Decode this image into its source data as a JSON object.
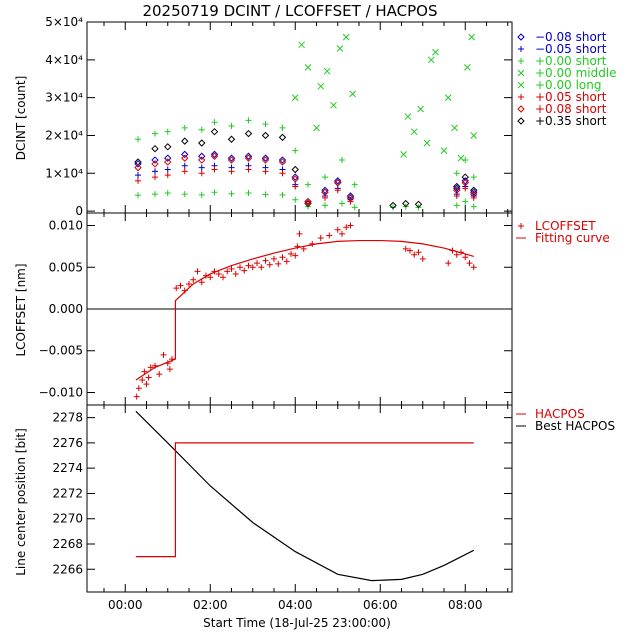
{
  "chart_data": {
    "title": "20250719 DCINT / LCOFFSET / HACPOS",
    "xlabel": "Start Time (18-Jul-25 23:00:00)",
    "xlim": [
      -0.9,
      9.1
    ],
    "xticks": [
      0,
      2,
      4,
      6,
      8
    ],
    "xtick_labels": [
      "00:00",
      "02:00",
      "04:00",
      "06:00",
      "08:00"
    ],
    "panels": [
      {
        "id": "dcint",
        "type": "scatter",
        "ylabel": "DCINT [count]",
        "ylim": [
          -500,
          50000
        ],
        "yticks": [
          0,
          10000,
          20000,
          30000,
          40000,
          50000
        ],
        "ytick_labels": [
          "0",
          "1×10⁴",
          "2×10⁴",
          "3×10⁴",
          "4×10⁴",
          "5×10⁴"
        ],
        "legend": [
          {
            "label": "−0.08 short",
            "marker": "diamond",
            "color": "#0000cc"
          },
          {
            "label": "−0.05 short",
            "marker": "plus",
            "color": "#0000cc"
          },
          {
            "label": "+0.00 short",
            "marker": "plus",
            "color": "#22cc22"
          },
          {
            "label": "+0.00 middle",
            "marker": "cross",
            "color": "#22cc22"
          },
          {
            "label": "+0.00 long",
            "marker": "cross",
            "color": "#22cc22"
          },
          {
            "label": "+0.05 short",
            "marker": "plus",
            "color": "#dd0000"
          },
          {
            "label": "+0.08 short",
            "marker": "diamond",
            "color": "#dd0000"
          },
          {
            "label": "+0.35 short",
            "marker": "diamond",
            "color": "#000000"
          }
        ],
        "series": [
          {
            "name": "+0.00 short (upper band)",
            "marker": "plus",
            "color": "#22cc22",
            "x": [
              0.3,
              0.7,
              1.0,
              1.4,
              1.8,
              2.1,
              2.5,
              2.9,
              3.3,
              3.7,
              4.0,
              4.3,
              4.7,
              5.1,
              5.4,
              7.8,
              8.0,
              8.2
            ],
            "y": [
              19000,
              20500,
              21000,
              22000,
              21500,
              23500,
              22500,
              24000,
              23000,
              22000,
              16000,
              7000,
              9000,
              13500,
              7000,
              10000,
              13500,
              9000
            ]
          },
          {
            "name": "+0.00 short (lower band)",
            "marker": "plus",
            "color": "#22cc22",
            "x": [
              0.3,
              0.7,
              1.0,
              1.4,
              1.8,
              2.1,
              2.5,
              2.9,
              3.3,
              3.7,
              4.0,
              4.3,
              4.7,
              5.1,
              5.4,
              6.3,
              6.6,
              6.9,
              7.8,
              8.0,
              8.2
            ],
            "y": [
              4200,
              4500,
              4800,
              4500,
              4300,
              5000,
              4600,
              4800,
              4400,
              4300,
              3000,
              1200,
              1500,
              2000,
              1000,
              1000,
              1200,
              1000,
              1500,
              2500,
              1200
            ]
          },
          {
            "name": "+0.00 middle/long",
            "marker": "cross",
            "color": "#22cc22",
            "x": [
              4.0,
              4.15,
              4.3,
              4.5,
              4.6,
              4.75,
              4.9,
              5.05,
              5.2,
              5.35,
              6.55,
              6.65,
              6.8,
              6.95,
              7.1,
              7.2,
              7.3,
              7.5,
              7.6,
              7.75,
              7.9,
              8.05,
              8.15,
              8.2
            ],
            "y": [
              30000,
              44000,
              38000,
              22000,
              33000,
              37000,
              28000,
              43000,
              46000,
              31000,
              15000,
              25000,
              21000,
              27000,
              18000,
              40000,
              42000,
              16000,
              30000,
              22000,
              14000,
              38000,
              46000,
              20000
            ]
          },
          {
            "name": "+0.35 short",
            "marker": "diamond",
            "color": "#000000",
            "x": [
              0.3,
              0.7,
              1.0,
              1.4,
              1.8,
              2.1,
              2.5,
              2.9,
              3.3,
              3.7,
              4.0,
              4.3,
              4.7,
              5.0,
              5.3,
              6.3,
              6.6,
              6.9,
              7.8,
              8.0,
              8.2
            ],
            "y": [
              13000,
              16500,
              17000,
              18500,
              18000,
              21000,
              19000,
              20500,
              20000,
              19500,
              11000,
              2000,
              5000,
              7500,
              3500,
              1500,
              2000,
              1800,
              6500,
              9000,
              5500
            ]
          },
          {
            "name": "−0.08 short",
            "marker": "diamond",
            "color": "#0000cc",
            "x": [
              0.3,
              0.7,
              1.0,
              1.4,
              1.8,
              2.1,
              2.5,
              2.9,
              3.3,
              3.7,
              4.0,
              4.3,
              4.7,
              5.0,
              5.3,
              7.8,
              8.0,
              8.2
            ],
            "y": [
              12500,
              13500,
              14000,
              15000,
              14500,
              15000,
              14000,
              14500,
              14000,
              13500,
              9000,
              2500,
              5500,
              8000,
              4000,
              6000,
              8000,
              5000
            ]
          },
          {
            "name": "+0.08 short",
            "marker": "diamond",
            "color": "#dd0000",
            "x": [
              0.3,
              0.7,
              1.0,
              1.4,
              1.8,
              2.1,
              2.5,
              2.9,
              3.3,
              3.7,
              4.0,
              4.3,
              4.7,
              5.0,
              5.3,
              7.8,
              8.0,
              8.2
            ],
            "y": [
              11500,
              12500,
              13000,
              14000,
              13500,
              14500,
              13500,
              14000,
              13500,
              13000,
              8500,
              2500,
              5000,
              7500,
              3500,
              5500,
              7500,
              4500
            ]
          },
          {
            "name": "−0.05 short",
            "marker": "plus",
            "color": "#0000cc",
            "x": [
              0.3,
              0.7,
              1.0,
              1.4,
              1.8,
              2.1,
              2.5,
              2.9,
              3.3,
              3.7,
              4.0,
              4.3,
              4.7,
              5.0,
              5.3,
              7.8,
              8.0,
              8.2
            ],
            "y": [
              9500,
              10500,
              11000,
              12000,
              11500,
              12000,
              11500,
              12000,
              11500,
              11000,
              7000,
              2000,
              4000,
              6000,
              3000,
              4500,
              6500,
              4000
            ]
          },
          {
            "name": "+0.05 short",
            "marker": "plus",
            "color": "#dd0000",
            "x": [
              0.3,
              0.7,
              1.0,
              1.4,
              1.8,
              2.1,
              2.5,
              2.9,
              3.3,
              3.7,
              4.0,
              4.3,
              4.7,
              5.0,
              5.3,
              7.8,
              8.0,
              8.2
            ],
            "y": [
              8000,
              9000,
              9500,
              10500,
              10000,
              11000,
              10500,
              11000,
              10500,
              10000,
              6500,
              2000,
              3500,
              5500,
              2500,
              4000,
              6000,
              3500
            ]
          }
        ]
      },
      {
        "id": "lcoffset",
        "type": "scatter+line",
        "ylabel": "LCOFFSET [nm]",
        "ylim": [
          -0.0115,
          0.0115
        ],
        "yticks": [
          -0.01,
          -0.005,
          0,
          0.005,
          0.01
        ],
        "ytick_labels": [
          "−0.010",
          "−0.005",
          "0.000",
          "0.005",
          "0.010"
        ],
        "legend": [
          {
            "label": "LCOFFSET",
            "marker": "plus",
            "color": "#dd0000"
          },
          {
            "label": "Fitting curve",
            "marker": "line",
            "color": "#dd0000"
          }
        ],
        "points": {
          "x": [
            0.27,
            0.32,
            0.4,
            0.45,
            0.5,
            0.55,
            0.6,
            0.7,
            0.8,
            0.9,
            1.0,
            1.05,
            1.1,
            1.2,
            1.3,
            1.4,
            1.5,
            1.6,
            1.7,
            1.8,
            1.9,
            2.0,
            2.1,
            2.2,
            2.3,
            2.4,
            2.5,
            2.6,
            2.7,
            2.8,
            2.9,
            3.0,
            3.1,
            3.2,
            3.3,
            3.4,
            3.5,
            3.6,
            3.7,
            3.8,
            3.9,
            4.0,
            4.05,
            4.1,
            4.2,
            4.4,
            4.6,
            4.8,
            5.0,
            5.1,
            5.2,
            5.3,
            6.6,
            6.7,
            6.8,
            6.9,
            7.0,
            7.6,
            7.7,
            7.8,
            7.9,
            8.0,
            8.1,
            8.2
          ],
          "y": [
            -0.0105,
            -0.0095,
            -0.0085,
            -0.0075,
            -0.009,
            -0.0082,
            -0.007,
            -0.0068,
            -0.0078,
            -0.0055,
            -0.0065,
            -0.0072,
            -0.006,
            0.0025,
            0.0028,
            0.0022,
            0.003,
            0.0035,
            0.0045,
            0.0032,
            0.004,
            0.0038,
            0.0045,
            0.0042,
            0.0038,
            0.0045,
            0.0048,
            0.0042,
            0.005,
            0.0046,
            0.0052,
            0.005,
            0.0055,
            0.005,
            0.0058,
            0.0053,
            0.006,
            0.0054,
            0.0062,
            0.0057,
            0.0066,
            0.0064,
            0.0075,
            0.009,
            0.0072,
            0.0078,
            0.0085,
            0.0088,
            0.0095,
            0.009,
            0.0098,
            0.01,
            0.0072,
            0.007,
            0.0065,
            0.0068,
            0.006,
            0.0055,
            0.007,
            0.0065,
            0.0068,
            0.0062,
            0.0055,
            0.005
          ]
        },
        "fit": {
          "x": [
            0.25,
            0.7,
            1.18,
            1.18,
            1.6,
            2.0,
            2.5,
            3.0,
            3.5,
            4.0,
            4.5,
            5.0,
            5.5,
            6.0,
            6.5,
            7.0,
            7.5,
            8.0,
            8.2
          ],
          "y": [
            -0.0085,
            -0.007,
            -0.006,
            0.001,
            0.003,
            0.0042,
            0.0052,
            0.006,
            0.0067,
            0.0073,
            0.0078,
            0.0081,
            0.0082,
            0.0082,
            0.0081,
            0.0078,
            0.0073,
            0.0066,
            0.0063
          ]
        },
        "zero_line": 0
      },
      {
        "id": "hacpos",
        "type": "line",
        "ylabel": "Line center position [bit]",
        "ylim": [
          2264.2,
          2279.0
        ],
        "yticks": [
          2266,
          2268,
          2270,
          2272,
          2274,
          2276,
          2278
        ],
        "ytick_labels": [
          "2266",
          "2268",
          "2270",
          "2272",
          "2274",
          "2276",
          "2278"
        ],
        "legend": [
          {
            "label": "HACPOS",
            "marker": "line",
            "color": "#dd0000"
          },
          {
            "label": "Best HACPOS",
            "marker": "line",
            "color": "#000000"
          }
        ],
        "hacpos": {
          "x": [
            0.25,
            1.18,
            1.18,
            8.2
          ],
          "y": [
            2267,
            2267,
            2276,
            2276
          ]
        },
        "best_hacpos": {
          "x": [
            0.25,
            1.0,
            2.0,
            3.0,
            4.0,
            5.0,
            5.8,
            6.5,
            7.0,
            7.5,
            8.2
          ],
          "y": [
            2278.5,
            2276.0,
            2272.6,
            2269.7,
            2267.4,
            2265.6,
            2265.1,
            2265.2,
            2265.6,
            2266.3,
            2267.5
          ]
        }
      }
    ]
  }
}
